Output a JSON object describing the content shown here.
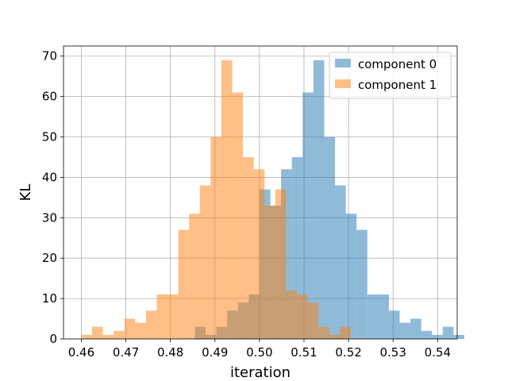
{
  "chart_data": {
    "type": "bar",
    "subtype": "overlaid-histogram",
    "xlabel": "iteration",
    "ylabel": "KL",
    "xlim": [
      0.456,
      0.5444
    ],
    "ylim": [
      0,
      72.5
    ],
    "xticks": [
      "0.46",
      "0.47",
      "0.48",
      "0.49",
      "0.50",
      "0.51",
      "0.52",
      "0.53",
      "0.54"
    ],
    "xtick_values": [
      0.46,
      0.47,
      0.48,
      0.49,
      0.5,
      0.51,
      0.52,
      0.53,
      0.54
    ],
    "yticks": [
      "0",
      "10",
      "20",
      "30",
      "40",
      "50",
      "60",
      "70"
    ],
    "ytick_values": [
      0,
      10,
      20,
      30,
      40,
      50,
      60,
      70
    ],
    "grid": true,
    "legend_position": "top-right",
    "bar_opacity": 0.5,
    "series": [
      {
        "name": "component 0",
        "color": "#1f77b4",
        "bin_start": 0.4855,
        "bin_width": 0.00242,
        "counts": [
          3,
          1,
          3,
          7,
          9,
          11,
          37,
          33,
          42,
          45,
          61,
          69,
          50,
          38,
          31,
          27,
          11,
          11,
          7,
          4,
          5,
          2,
          1,
          3,
          1
        ]
      },
      {
        "name": "component 1",
        "color": "#ff7f0e",
        "bin_start": 0.46,
        "bin_width": 0.00242,
        "counts": [
          1,
          3,
          1,
          2,
          5,
          4,
          7,
          11,
          11,
          27,
          31,
          38,
          50,
          69,
          61,
          45,
          42,
          33,
          37,
          12,
          11,
          9,
          3,
          1,
          3
        ]
      }
    ]
  }
}
